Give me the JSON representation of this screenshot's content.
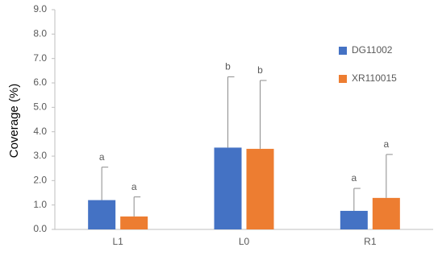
{
  "chart_data": {
    "type": "bar",
    "y_label": "Coverage (%)",
    "categories": [
      "L1",
      "L0",
      "R1"
    ],
    "series": [
      {
        "name": "DG11002",
        "color": "#4472c4",
        "values": [
          1.2,
          3.35,
          0.76
        ],
        "errors": [
          1.35,
          2.9,
          0.92
        ],
        "letters": [
          "a",
          "b",
          "a"
        ]
      },
      {
        "name": "XR110015",
        "color": "#ed7d31",
        "values": [
          0.53,
          3.3,
          1.29
        ],
        "errors": [
          0.8,
          2.8,
          1.78
        ],
        "letters": [
          "a",
          "b",
          "a"
        ]
      }
    ],
    "ylim": [
      0,
      9
    ],
    "yticks": [
      {
        "value": 0,
        "label": "0.0"
      },
      {
        "value": 1,
        "label": "1.0"
      },
      {
        "value": 2,
        "label": "2.0"
      },
      {
        "value": 3,
        "label": "3.0"
      },
      {
        "value": 4,
        "label": "4.0"
      },
      {
        "value": 5,
        "label": "5.0"
      },
      {
        "value": 6,
        "label": "6.0"
      },
      {
        "value": 7,
        "label": "7.0"
      },
      {
        "value": 8,
        "label": "8.0"
      },
      {
        "value": 9,
        "label": "9.0"
      }
    ],
    "grid": false,
    "legend": "right"
  }
}
